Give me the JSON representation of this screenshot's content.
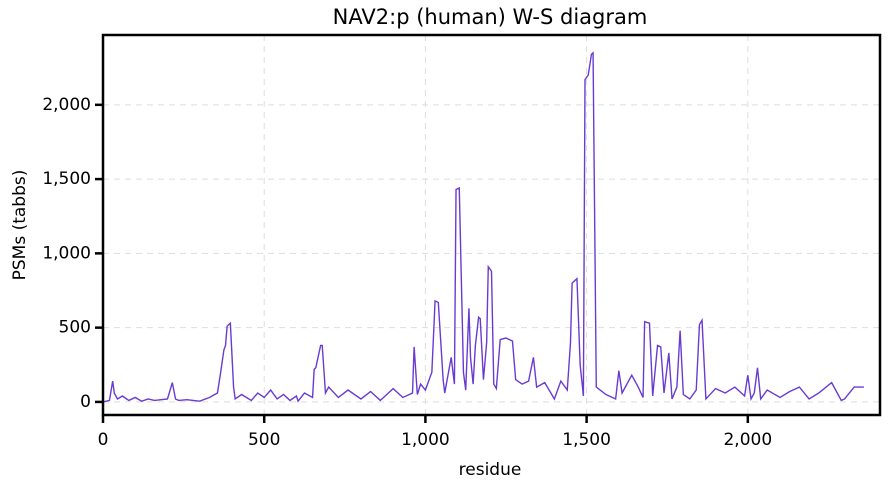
{
  "chart_data": {
    "type": "line",
    "title": "NAV2:p (human) W-S diagram",
    "x_label": "residue",
    "y_label": "PSMs (tabbs)",
    "x": [
      0,
      20,
      30,
      35,
      45,
      60,
      80,
      100,
      120,
      140,
      160,
      200,
      215,
      225,
      235,
      260,
      300,
      330,
      355,
      365,
      375,
      380,
      385,
      395,
      405,
      410,
      430,
      460,
      480,
      500,
      520,
      540,
      560,
      580,
      600,
      605,
      625,
      650,
      655,
      660,
      675,
      680,
      690,
      700,
      730,
      760,
      800,
      830,
      860,
      900,
      930,
      960,
      965,
      975,
      985,
      1000,
      1020,
      1030,
      1040,
      1055,
      1060,
      1080,
      1090,
      1095,
      1105,
      1118,
      1125,
      1135,
      1140,
      1148,
      1155,
      1165,
      1170,
      1180,
      1190,
      1195,
      1205,
      1212,
      1220,
      1232,
      1250,
      1270,
      1280,
      1300,
      1320,
      1335,
      1345,
      1370,
      1400,
      1420,
      1440,
      1450,
      1455,
      1470,
      1480,
      1490,
      1495,
      1505,
      1515,
      1520,
      1530,
      1560,
      1590,
      1600,
      1610,
      1640,
      1660,
      1675,
      1680,
      1695,
      1705,
      1720,
      1730,
      1740,
      1755,
      1765,
      1780,
      1790,
      1800,
      1820,
      1840,
      1850,
      1858,
      1870,
      1900,
      1930,
      1960,
      1990,
      2000,
      2010,
      2020,
      2030,
      2040,
      2060,
      2100,
      2130,
      2160,
      2190,
      2220,
      2260,
      2290,
      2300,
      2330,
      2360
    ],
    "series": [
      {
        "name": "NAV2:p (human)",
        "color": "#6a3bd1",
        "values": [
          0,
          10,
          140,
          60,
          20,
          40,
          10,
          30,
          5,
          20,
          10,
          20,
          130,
          20,
          10,
          15,
          5,
          30,
          60,
          200,
          350,
          380,
          510,
          530,
          100,
          20,
          50,
          10,
          60,
          30,
          80,
          20,
          50,
          10,
          40,
          5,
          60,
          30,
          220,
          230,
          380,
          380,
          60,
          100,
          30,
          80,
          20,
          70,
          10,
          90,
          30,
          60,
          370,
          50,
          120,
          80,
          200,
          680,
          670,
          150,
          60,
          300,
          120,
          1430,
          1440,
          200,
          80,
          630,
          300,
          120,
          380,
          570,
          560,
          150,
          400,
          910,
          880,
          120,
          90,
          420,
          430,
          410,
          150,
          120,
          140,
          300,
          100,
          130,
          20,
          140,
          80,
          400,
          800,
          830,
          250,
          40,
          2170,
          2200,
          2340,
          2350,
          100,
          50,
          20,
          210,
          60,
          180,
          100,
          30,
          540,
          530,
          40,
          380,
          370,
          60,
          330,
          20,
          100,
          480,
          50,
          20,
          80,
          520,
          550,
          20,
          90,
          60,
          100,
          40,
          180,
          20,
          60,
          230,
          20,
          80,
          30,
          70,
          100,
          20,
          60,
          130,
          10,
          20,
          100,
          100
        ]
      }
    ],
    "xlim": [
      0,
      2410
    ],
    "ylim": [
      -88,
      2470
    ],
    "xticks": [
      0,
      500,
      {
        "value": 1000,
        "label": "1,000"
      },
      {
        "value": 1500,
        "label": "1,500"
      },
      {
        "value": 2000,
        "label": "2,000"
      }
    ],
    "yticks": [
      0,
      500,
      {
        "value": 1000,
        "label": "1,000"
      },
      {
        "value": 1500,
        "label": "1,500"
      },
      {
        "value": 2000,
        "label": "2,000"
      }
    ],
    "grid": true
  }
}
